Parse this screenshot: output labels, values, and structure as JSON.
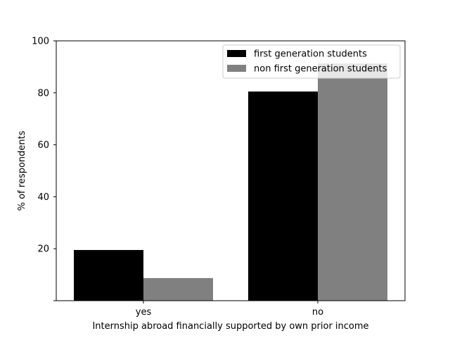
{
  "chart_data": {
    "type": "bar",
    "title": "",
    "xlabel": "Internship abroad financially supported by own prior income",
    "ylabel": "% of respondents",
    "categories": [
      "yes",
      "no"
    ],
    "series": [
      {
        "name": "first generation students",
        "values": [
          19.5,
          80.5
        ],
        "color": "#000000"
      },
      {
        "name": "non first generation students",
        "values": [
          8.7,
          91.3
        ],
        "color": "#808080"
      }
    ],
    "ylim": [
      0,
      100
    ],
    "yticks": [
      20,
      40,
      60,
      80,
      100
    ],
    "grid": false,
    "legend_position": "top-right"
  }
}
